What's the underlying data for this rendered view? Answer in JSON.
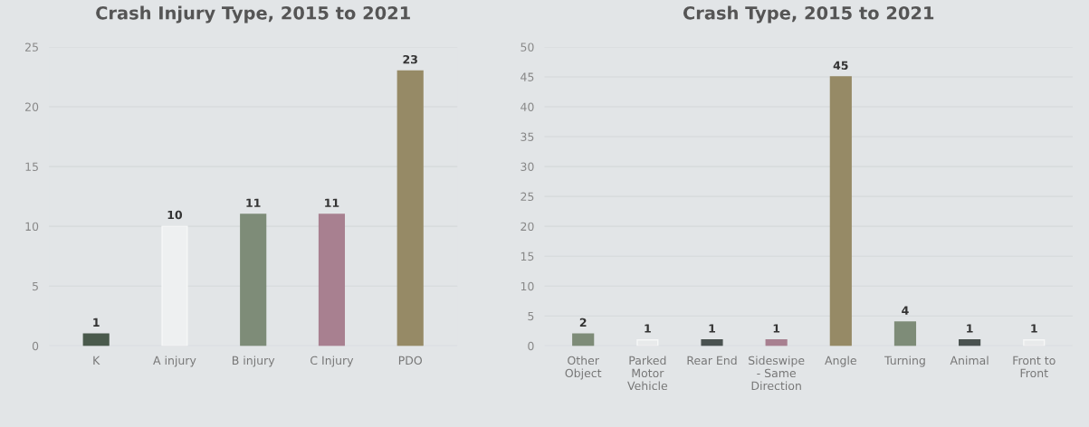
{
  "chart_data": [
    {
      "type": "bar",
      "title": "Crash Injury Type, 2015 to 2021",
      "categories": [
        "K",
        "A injury",
        "B injury",
        "C Injury",
        "PDO"
      ],
      "values": [
        1,
        10,
        11,
        11,
        23
      ],
      "colors": [
        "#4a5a4c",
        "#eef0f1",
        "#7e8c78",
        "#a88090",
        "#968a66"
      ],
      "ylim": [
        0,
        25
      ],
      "yticks": [
        0,
        5,
        10,
        15,
        20,
        25
      ],
      "grid": "y",
      "data_labels": true
    },
    {
      "type": "bar",
      "title": "Crash Type, 2015 to 2021",
      "categories": [
        "Other\nObject",
        "Parked\nMotor\nVehicle",
        "Rear End",
        "Sideswipe\n- Same\nDirection",
        "Angle",
        "Turning",
        "Animal",
        "Front to\nFront"
      ],
      "values": [
        2,
        1,
        1,
        1,
        45,
        4,
        1,
        1
      ],
      "colors": [
        "#7e8c78",
        "#e8eaeb",
        "#4a5250",
        "#a88090",
        "#968a66",
        "#7e8c78",
        "#4a5250",
        "#e8eaeb"
      ],
      "ylim": [
        0,
        50
      ],
      "yticks": [
        0,
        5,
        10,
        15,
        20,
        25,
        30,
        35,
        40,
        45,
        50
      ],
      "grid": "y",
      "data_labels": true
    }
  ]
}
